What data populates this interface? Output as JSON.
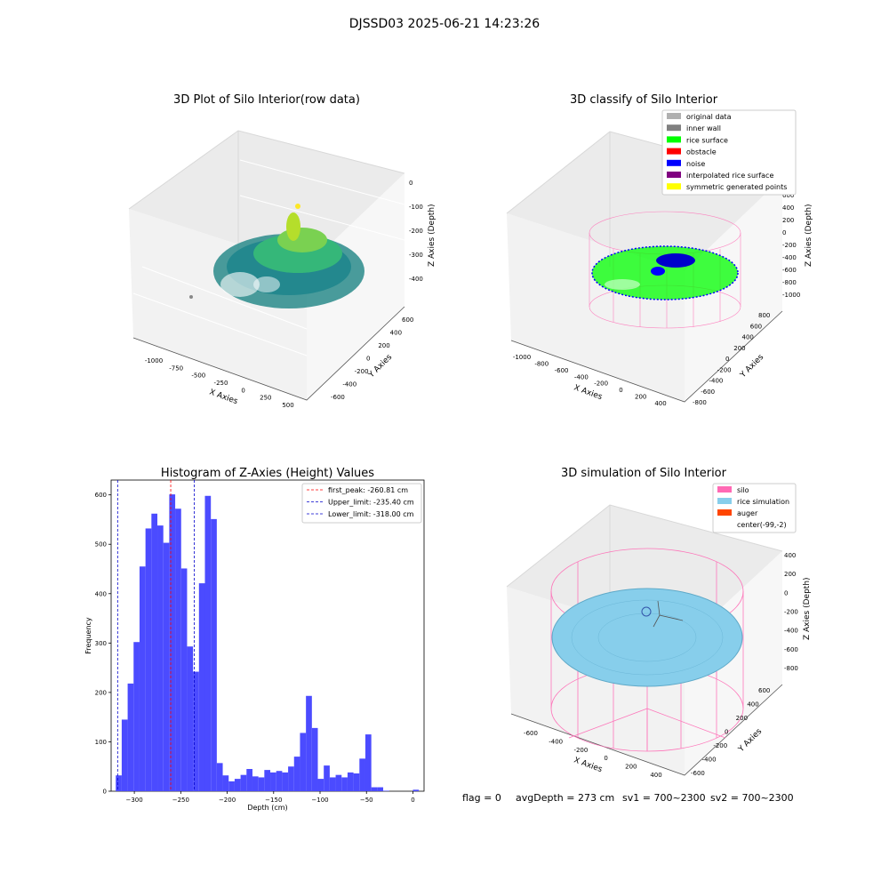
{
  "suptitle": "DJSSD03 2025-06-21 14:23:26",
  "status": {
    "flag": "flag = 0",
    "avg_depth": "avgDepth = 273 cm",
    "sv1": "sv1 = 700~2300",
    "sv2": "sv2 = 700~2300"
  },
  "panels": {
    "raw": {
      "title": "3D Plot of Silo Interior(row data)",
      "xlabel": "X Axies",
      "ylabel": "Y Axies",
      "zlabel": "Z Axies (Depth)",
      "xticks": [
        "-1000",
        "-750",
        "-500",
        "-250",
        "0",
        "250",
        "500"
      ],
      "yticks": [
        "-600",
        "-400",
        "-200",
        "0",
        "200",
        "400",
        "600"
      ],
      "zticks": [
        "-400",
        "-300",
        "-200",
        "-100",
        "0"
      ]
    },
    "classify": {
      "title": "3D classify of Silo Interior",
      "xlabel": "X Axies",
      "ylabel": "Y Axies",
      "zlabel": "Z Axies (Depth)",
      "xticks": [
        "-1000",
        "-800",
        "-600",
        "-400",
        "-200",
        "0",
        "200",
        "400"
      ],
      "yticks": [
        "-800",
        "-600",
        "-400",
        "-200",
        "0",
        "200",
        "400",
        "600",
        "800"
      ],
      "zticks": [
        "-1000",
        "-800",
        "-600",
        "-400",
        "-200",
        "0",
        "200",
        "400",
        "600",
        "800"
      ],
      "legend": [
        {
          "label": "original data",
          "color": "#b0b0b0"
        },
        {
          "label": "inner wall",
          "color": "#808080"
        },
        {
          "label": "rice surface",
          "color": "#00ff00"
        },
        {
          "label": "obstacle",
          "color": "#ff0000"
        },
        {
          "label": "noise",
          "color": "#0000ff"
        },
        {
          "label": "interpolated rice surface",
          "color": "#800080"
        },
        {
          "label": "symmetric generated points",
          "color": "#ffff00"
        }
      ]
    },
    "simulation": {
      "title": "3D simulation of Silo Interior",
      "xlabel": "X Axies",
      "ylabel": "Y Axies",
      "zlabel": "Z Axies (Depth)",
      "xticks": [
        "-600",
        "-400",
        "-200",
        "0",
        "200",
        "400"
      ],
      "yticks": [
        "-600",
        "-400",
        "-200",
        "0",
        "200",
        "400",
        "600"
      ],
      "zticks": [
        "-800",
        "-600",
        "-400",
        "-200",
        "0",
        "200",
        "400"
      ],
      "legend": [
        {
          "label": "silo",
          "color": "#ff69b4"
        },
        {
          "label": "rice simulation",
          "color": "#87ceeb"
        },
        {
          "label": "auger",
          "color": "#ff4500"
        },
        {
          "label": "center(-99,-2)",
          "color": ""
        }
      ]
    }
  },
  "chart_data": {
    "type": "bar",
    "title": "Histogram of Z-Axies (Height) Values",
    "xlabel": "Depth (cm)",
    "ylabel": "Frequency",
    "xlim": [
      -325,
      12
    ],
    "ylim": [
      0,
      630
    ],
    "bin_width": 6.4,
    "bin_start": -320,
    "xticks": [
      -300,
      -250,
      -200,
      -150,
      -100,
      -50,
      0
    ],
    "yticks": [
      0,
      100,
      200,
      300,
      400,
      500,
      600
    ],
    "bar_color": "#4b4bff",
    "values": [
      32,
      145,
      218,
      302,
      455,
      532,
      562,
      538,
      503,
      601,
      572,
      451,
      293,
      242,
      421,
      598,
      551,
      57,
      32,
      20,
      25,
      33,
      45,
      30,
      28,
      43,
      38,
      41,
      38,
      50,
      70,
      118,
      193,
      128,
      25,
      52,
      28,
      33,
      28,
      38,
      36,
      66,
      115,
      8,
      8,
      1,
      0,
      0,
      0,
      0,
      3,
      0
    ],
    "vlines": [
      {
        "label": "first_peak: -260.81 cm",
        "x": -260.81,
        "color": "#ff0000"
      },
      {
        "label": "Upper_limit: -235.40 cm",
        "x": -235.4,
        "color": "#0000cc"
      },
      {
        "label": "Lower_limit: -318.00 cm",
        "x": -318.0,
        "color": "#0000cc"
      }
    ]
  }
}
